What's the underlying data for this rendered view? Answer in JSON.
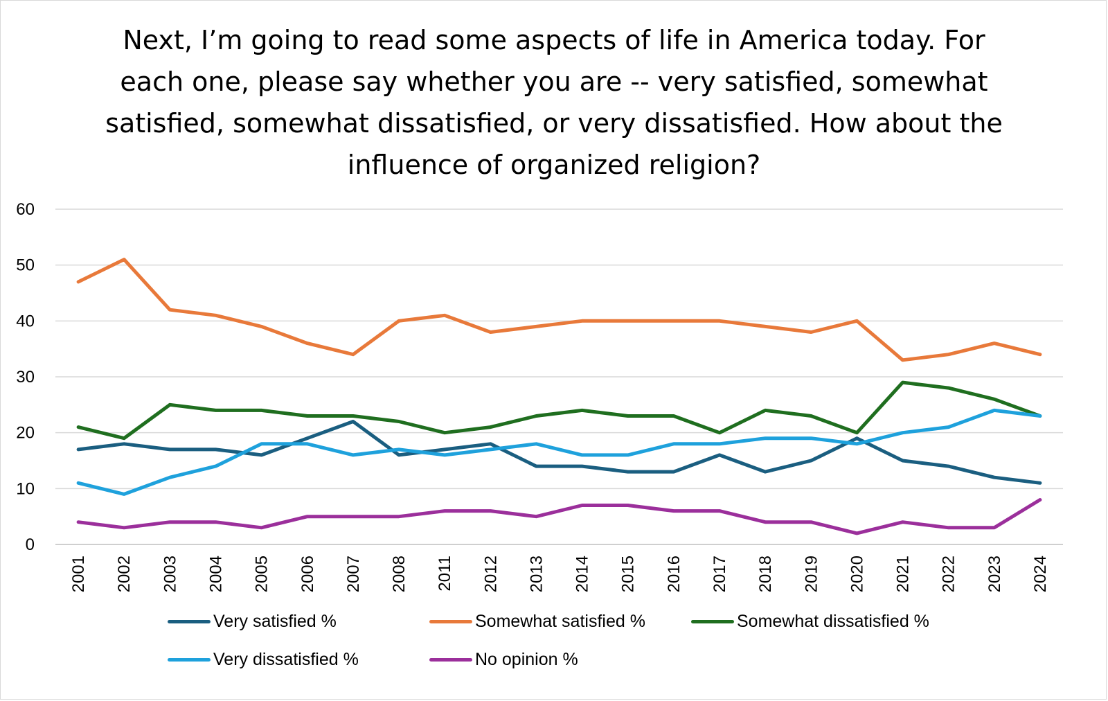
{
  "chart_data": {
    "type": "line",
    "title": "Next, I’m going to read some aspects of life in America today. For each one, please say whether you are -- very satisfied, somewhat satisfied, somewhat dissatisfied, or very dissatisfied. How about the influence of organized religion?",
    "xlabel": "",
    "ylabel": "",
    "ylim": [
      0,
      60
    ],
    "yticks": [
      0,
      10,
      20,
      30,
      40,
      50,
      60
    ],
    "grid": true,
    "legend_position": "bottom",
    "categories": [
      "2001",
      "2002",
      "2003",
      "2004",
      "2005",
      "2006",
      "2007",
      "2008",
      "2011",
      "2012",
      "2013",
      "2014",
      "2015",
      "2016",
      "2017",
      "2018",
      "2019",
      "2020",
      "2021",
      "2022",
      "2023",
      "2024"
    ],
    "series": [
      {
        "name": "Very satisfied %",
        "color": "#1a5e80",
        "values": [
          17,
          18,
          17,
          17,
          16,
          19,
          22,
          16,
          17,
          18,
          14,
          14,
          13,
          13,
          16,
          13,
          15,
          19,
          15,
          14,
          12,
          11
        ]
      },
      {
        "name": "Somewhat satisfied %",
        "color": "#e8793a",
        "values": [
          47,
          51,
          42,
          41,
          39,
          36,
          34,
          40,
          41,
          38,
          39,
          40,
          40,
          40,
          40,
          39,
          38,
          40,
          33,
          34,
          36,
          34
        ]
      },
      {
        "name": "Somewhat dissatisfied %",
        "color": "#1f6e1f",
        "values": [
          21,
          19,
          25,
          24,
          24,
          23,
          23,
          22,
          20,
          21,
          23,
          24,
          23,
          23,
          20,
          24,
          23,
          20,
          29,
          28,
          26,
          23
        ]
      },
      {
        "name": "Very dissatisfied %",
        "color": "#1ea1dc",
        "values": [
          11,
          9,
          12,
          14,
          18,
          18,
          16,
          17,
          16,
          17,
          18,
          16,
          16,
          18,
          18,
          19,
          19,
          18,
          20,
          21,
          24,
          23
        ]
      },
      {
        "name": "No opinion %",
        "color": "#9b2f9b",
        "values": [
          4,
          3,
          4,
          4,
          3,
          5,
          5,
          5,
          6,
          6,
          5,
          7,
          7,
          6,
          6,
          4,
          4,
          2,
          4,
          3,
          3,
          8
        ]
      }
    ]
  }
}
